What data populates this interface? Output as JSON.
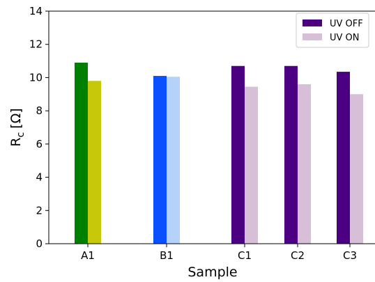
{
  "chart_data": {
    "type": "bar",
    "categories": [
      "A1",
      "B1",
      "C1",
      "C2",
      "C3"
    ],
    "series": [
      {
        "name": "UV OFF",
        "values": [
          10.9,
          10.1,
          10.7,
          10.7,
          10.35
        ],
        "colors": [
          "#008000",
          "#0a50ff",
          "#4b0082",
          "#4b0082",
          "#4b0082"
        ]
      },
      {
        "name": "UV ON",
        "values": [
          9.8,
          10.05,
          9.45,
          9.6,
          9.0
        ],
        "colors": [
          "#c8c80a",
          "#b4d2fa",
          "#d8bfd8",
          "#d8bfd8",
          "#d8bfd8"
        ]
      }
    ],
    "legend_colors": [
      "#4b0082",
      "#d8bfd8"
    ],
    "xlabel": "Sample",
    "ylabel_main": "R",
    "ylabel_sub": "c",
    "ylabel_unit": "[Ω]",
    "ylim": [
      0,
      14
    ],
    "yticks": [
      0,
      2,
      4,
      6,
      8,
      10,
      12,
      14
    ],
    "grid": false,
    "legend_position": "top-right"
  }
}
